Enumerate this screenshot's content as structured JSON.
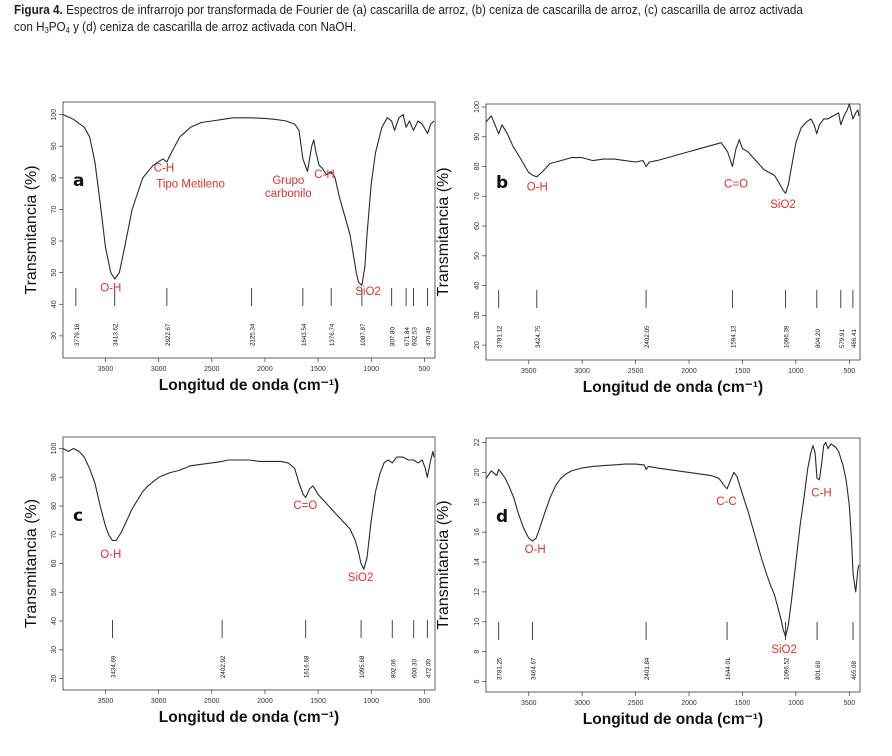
{
  "caption": {
    "label": "Figura 4.",
    "text_1": " Espectros de infrarrojo por transformada de Fourier de (a) cascarilla de arroz, (b) ceniza de cascarilla de arroz, (c) cascarilla de arroz activada con H",
    "sub_1": "3",
    "text_2": "PO",
    "sub_2": "4",
    "text_3": " y (d) ceniza de cascarilla de arroz activada con NaOH."
  },
  "colors": {
    "curve": "#2a2a2a",
    "annotation": "#e03030",
    "frame": "#3a3a3a"
  },
  "chart_data": [
    {
      "type": "line",
      "panel_letter": "a",
      "xlabel": "Longitud de onda (cm⁻¹)",
      "ylabel": "Transmitancia (%)",
      "xlim": [
        3900,
        400
      ],
      "ylim": [
        23,
        104
      ],
      "x_ticks": [
        "3500",
        "3000",
        "2500",
        "2000",
        "1500",
        "1000",
        "500"
      ],
      "x_tick_values": [
        3500,
        3000,
        2500,
        2000,
        1500,
        1000,
        500
      ],
      "y_ticks": [
        "30",
        "40",
        "50",
        "60",
        "70",
        "80",
        "90",
        "100"
      ],
      "y_tick_values": [
        30,
        40,
        50,
        60,
        70,
        80,
        90,
        100
      ],
      "x": [
        3900,
        3800,
        3700,
        3650,
        3600,
        3550,
        3500,
        3450,
        3413,
        3370,
        3320,
        3250,
        3150,
        3050,
        2960,
        2923,
        2880,
        2800,
        2700,
        2600,
        2500,
        2400,
        2300,
        2200,
        2125,
        2000,
        1900,
        1800,
        1720,
        1680,
        1643,
        1600,
        1560,
        1540,
        1520,
        1490,
        1460,
        1420,
        1377,
        1340,
        1300,
        1250,
        1200,
        1170,
        1140,
        1120,
        1088,
        1060,
        1040,
        1000,
        960,
        900,
        850,
        808,
        780,
        740,
        700,
        672,
        640,
        603,
        560,
        520,
        470,
        440,
        410
      ],
      "y": [
        100,
        98.5,
        96,
        93,
        85,
        72,
        58,
        50,
        48,
        50,
        58,
        70,
        80,
        84,
        86,
        85,
        88,
        93,
        96,
        97.5,
        98,
        98.5,
        99,
        99,
        99,
        98.8,
        98.5,
        98,
        97,
        95,
        86,
        82,
        90,
        92,
        88,
        84,
        83,
        81,
        82,
        80,
        74,
        68,
        62,
        56,
        50,
        47,
        46,
        52,
        62,
        78,
        88,
        96,
        99,
        98,
        95,
        99,
        100,
        96,
        98,
        95,
        98,
        97,
        94,
        97,
        98
      ],
      "peak_marks": [
        {
          "label": "3779.16",
          "x": 3779.16
        },
        {
          "label": "3413.62",
          "x": 3413.62
        },
        {
          "label": "2922.67",
          "x": 2922.67
        },
        {
          "label": "2125.34",
          "x": 2125.34
        },
        {
          "label": "1643.54",
          "x": 1643.54
        },
        {
          "label": "1376.74",
          "x": 1376.74
        },
        {
          "label": "1087.87",
          "x": 1087.87
        },
        {
          "label": "807.80",
          "x": 807.8
        },
        {
          "label": "671.84",
          "x": 671.84
        },
        {
          "label": "602.53",
          "x": 602.53
        },
        {
          "label": "470.49",
          "x": 470.49
        }
      ],
      "annotations": [
        {
          "lines": [
            "O-H"
          ],
          "x": 3450,
          "y": 44
        },
        {
          "lines": [
            "C-H"
          ],
          "x": 2950,
          "y": 82
        },
        {
          "lines": [
            "Tipo Metileno"
          ],
          "x": 2700,
          "y": 77
        },
        {
          "lines": [
            "Grupo",
            "carbonilo"
          ],
          "x": 1780,
          "y": 78
        },
        {
          "lines": [
            "C-H"
          ],
          "x": 1440,
          "y": 80
        },
        {
          "lines": [
            "SiO2"
          ],
          "x": 1030,
          "y": 43
        }
      ]
    },
    {
      "type": "line",
      "panel_letter": "b",
      "xlabel": "Longitud de onda (cm⁻¹)",
      "ylabel": "Transmitancia (%)",
      "xlim": [
        3900,
        400
      ],
      "ylim": [
        15,
        101
      ],
      "x_ticks": [
        "3500",
        "3000",
        "2500",
        "2000",
        "1500",
        "1000",
        "500"
      ],
      "x_tick_values": [
        3500,
        3000,
        2500,
        2000,
        1500,
        1000,
        500
      ],
      "y_ticks": [
        "20",
        "30",
        "40",
        "50",
        "60",
        "70",
        "80",
        "90",
        "100"
      ],
      "y_tick_values": [
        20,
        30,
        40,
        50,
        60,
        70,
        80,
        90,
        100
      ],
      "x": [
        3900,
        3850,
        3781,
        3750,
        3700,
        3650,
        3600,
        3550,
        3500,
        3460,
        3425,
        3380,
        3300,
        3200,
        3100,
        3000,
        2900,
        2800,
        2700,
        2600,
        2500,
        2430,
        2402,
        2370,
        2300,
        2200,
        2100,
        2000,
        1900,
        1800,
        1700,
        1640,
        1594,
        1560,
        1530,
        1500,
        1450,
        1400,
        1350,
        1300,
        1250,
        1200,
        1150,
        1120,
        1096,
        1070,
        1040,
        1000,
        950,
        900,
        860,
        830,
        804,
        780,
        740,
        700,
        650,
        600,
        580,
        550,
        520,
        500,
        466,
        440,
        420,
        410
      ],
      "y": [
        95,
        97,
        91,
        94,
        91,
        87,
        84,
        81,
        78,
        77,
        76.5,
        78,
        81,
        82,
        83,
        83,
        82,
        82.5,
        82.5,
        82,
        81.5,
        82,
        80,
        81.5,
        82,
        83,
        84,
        85,
        86,
        87,
        88,
        85,
        80,
        86,
        89,
        86,
        85,
        83,
        81,
        79,
        78,
        77,
        74,
        72,
        71,
        74,
        80,
        88,
        93,
        95,
        96,
        94,
        91,
        94,
        96,
        96,
        97,
        98,
        94,
        97,
        99,
        101,
        96,
        98,
        99,
        97
      ],
      "peak_marks": [
        {
          "label": "3781.12",
          "x": 3781.12
        },
        {
          "label": "3424.75",
          "x": 3424.75
        },
        {
          "label": "2402.05",
          "x": 2402.05
        },
        {
          "label": "1594.13",
          "x": 1594.13
        },
        {
          "label": "1096.39",
          "x": 1096.39
        },
        {
          "label": "804.20",
          "x": 804.2
        },
        {
          "label": "579.91",
          "x": 579.91
        },
        {
          "label": "466.41",
          "x": 466.41
        }
      ],
      "annotations": [
        {
          "lines": [
            "O-H"
          ],
          "x": 3420,
          "y": 72
        },
        {
          "lines": [
            "C=O"
          ],
          "x": 1560,
          "y": 73
        },
        {
          "lines": [
            "SiO2"
          ],
          "x": 1120,
          "y": 66
        }
      ]
    },
    {
      "type": "line",
      "panel_letter": "c",
      "xlabel": "Longitud de onda (cm⁻¹)",
      "ylabel": "Transmitancia (%)",
      "xlim": [
        3900,
        400
      ],
      "ylim": [
        16,
        104
      ],
      "x_ticks": [
        "3500",
        "3000",
        "2500",
        "2000",
        "1500",
        "1000",
        "500"
      ],
      "x_tick_values": [
        3500,
        3000,
        2500,
        2000,
        1500,
        1000,
        500
      ],
      "y_ticks": [
        "20",
        "30",
        "40",
        "50",
        "60",
        "70",
        "80",
        "90",
        "100"
      ],
      "y_tick_values": [
        20,
        30,
        40,
        50,
        60,
        70,
        80,
        90,
        100
      ],
      "x": [
        3900,
        3850,
        3800,
        3750,
        3700,
        3650,
        3600,
        3550,
        3500,
        3470,
        3435,
        3400,
        3350,
        3300,
        3250,
        3200,
        3150,
        3100,
        3050,
        3000,
        2900,
        2800,
        2700,
        2600,
        2500,
        2402,
        2350,
        2250,
        2150,
        2050,
        1950,
        1850,
        1780,
        1720,
        1680,
        1640,
        1617,
        1580,
        1550,
        1530,
        1500,
        1450,
        1400,
        1350,
        1300,
        1250,
        1200,
        1150,
        1120,
        1096,
        1070,
        1040,
        1000,
        960,
        920,
        880,
        840,
        802,
        760,
        700,
        650,
        600,
        560,
        520,
        490,
        472,
        440,
        420,
        410
      ],
      "y": [
        100,
        99,
        100,
        99,
        97,
        93,
        88,
        80,
        73,
        70,
        68,
        68,
        71,
        75,
        79,
        82,
        85,
        87,
        88.5,
        90,
        91.5,
        92.5,
        94,
        94.5,
        95,
        95.5,
        96,
        96,
        96,
        95.5,
        95.5,
        95.5,
        95,
        93,
        88,
        84,
        83,
        86,
        87,
        86,
        84,
        82,
        80,
        78,
        76,
        74,
        72,
        68,
        64,
        60,
        58,
        62,
        75,
        85,
        91,
        95,
        96,
        95,
        97,
        97,
        96,
        96,
        95,
        96,
        93,
        90,
        96,
        99,
        97
      ],
      "peak_marks": [
        {
          "label": "3434.69",
          "x": 3434.69
        },
        {
          "label": "2402.92",
          "x": 2402.92
        },
        {
          "label": "1616.68",
          "x": 1616.68
        },
        {
          "label": "1095.68",
          "x": 1095.68
        },
        {
          "label": "802.06",
          "x": 802.06
        },
        {
          "label": "600.30",
          "x": 600.3
        },
        {
          "label": "472.00",
          "x": 472.0
        }
      ],
      "annotations": [
        {
          "lines": [
            "O-H"
          ],
          "x": 3450,
          "y": 62
        },
        {
          "lines": [
            "C=O"
          ],
          "x": 1620,
          "y": 79
        },
        {
          "lines": [
            "SiO2"
          ],
          "x": 1100,
          "y": 54
        }
      ]
    },
    {
      "type": "line",
      "panel_letter": "d",
      "xlabel": "Longitud de onda (cm⁻¹)",
      "ylabel": "Transmitancia (%)",
      "xlim": [
        3900,
        400
      ],
      "ylim": [
        5.3,
        22.3
      ],
      "x_ticks": [
        "3500",
        "3000",
        "2500",
        "2000",
        "1500",
        "1000",
        "500"
      ],
      "x_tick_values": [
        3500,
        3000,
        2500,
        2000,
        1500,
        1000,
        500
      ],
      "y_ticks": [
        "6",
        "8",
        "10",
        "12",
        "14",
        "16",
        "18",
        "20",
        "22"
      ],
      "y_tick_values": [
        6,
        8,
        10,
        12,
        14,
        16,
        18,
        20,
        22
      ],
      "x": [
        3900,
        3850,
        3800,
        3781,
        3760,
        3720,
        3680,
        3640,
        3600,
        3550,
        3500,
        3465,
        3430,
        3400,
        3350,
        3300,
        3250,
        3200,
        3150,
        3100,
        3000,
        2900,
        2800,
        2700,
        2600,
        2500,
        2420,
        2401,
        2380,
        2300,
        2200,
        2100,
        2000,
        1900,
        1800,
        1720,
        1680,
        1644,
        1610,
        1580,
        1550,
        1520,
        1480,
        1440,
        1400,
        1360,
        1320,
        1280,
        1240,
        1200,
        1170,
        1140,
        1120,
        1097,
        1070,
        1040,
        1000,
        960,
        920,
        890,
        860,
        840,
        820,
        802,
        780,
        760,
        740,
        720,
        700,
        670,
        630,
        600,
        560,
        530,
        500,
        480,
        465,
        440,
        420,
        410
      ],
      "y": [
        19.6,
        20.1,
        19.8,
        20.2,
        20,
        19.6,
        19,
        18.3,
        17.3,
        16.3,
        15.6,
        15.4,
        15.6,
        16.2,
        17.3,
        18.3,
        19.1,
        19.6,
        19.9,
        20.1,
        20.3,
        20.4,
        20.45,
        20.5,
        20.55,
        20.55,
        20.5,
        20.2,
        20.4,
        20.3,
        20.2,
        20.1,
        20,
        19.9,
        19.8,
        19.6,
        19.2,
        18.9,
        19.5,
        20,
        19.7,
        19,
        18.1,
        17.2,
        16.2,
        15.2,
        14.2,
        13.3,
        12.5,
        11.8,
        11,
        10.2,
        9.5,
        9,
        9.8,
        11.5,
        14,
        16.5,
        18.5,
        20.2,
        21.3,
        21.8,
        21.3,
        19.6,
        19.5,
        20.5,
        21.8,
        22,
        21.6,
        21.9,
        21.7,
        21.4,
        20.5,
        19.5,
        17.8,
        15.5,
        13.2,
        12,
        13.5,
        13.8
      ],
      "peak_marks": [
        {
          "label": "3781.25",
          "x": 3781.25
        },
        {
          "label": "3464.67",
          "x": 3464.67
        },
        {
          "label": "2401.84",
          "x": 2401.84
        },
        {
          "label": "1644.01",
          "x": 1644.01
        },
        {
          "label": "1096.52",
          "x": 1096.52
        },
        {
          "label": "801.69",
          "x": 801.69
        },
        {
          "label": "465.08",
          "x": 465.08
        }
      ],
      "annotations": [
        {
          "lines": [
            "O-H"
          ],
          "x": 3440,
          "y": 14.6
        },
        {
          "lines": [
            "C-C"
          ],
          "x": 1650,
          "y": 17.8
        },
        {
          "lines": [
            "C-H"
          ],
          "x": 760,
          "y": 18.4
        },
        {
          "lines": [
            "SiO2"
          ],
          "x": 1110,
          "y": 7.9
        }
      ]
    }
  ]
}
